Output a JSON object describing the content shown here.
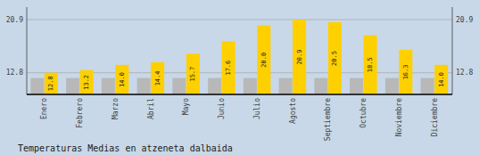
{
  "chart_data": {
    "type": "bar",
    "title": "Temperaturas Medias en atzeneta dalbaida",
    "categories": [
      "Enero",
      "Febrero",
      "Marzo",
      "Abril",
      "Mayo",
      "Junio",
      "Julio",
      "Agosto",
      "Septiembre",
      "Octubre",
      "Noviembre",
      "Diciembre"
    ],
    "series": [
      {
        "color": "#B8B8B8",
        "values": [
          12.0,
          12.0,
          12.0,
          12.0,
          12.0,
          12.0,
          12.0,
          12.0,
          12.0,
          12.0,
          12.0,
          12.0
        ]
      },
      {
        "color": "#FFD000",
        "data_labels": true,
        "values": [
          12.8,
          13.2,
          14.0,
          14.4,
          15.7,
          17.6,
          20.0,
          20.9,
          20.5,
          18.5,
          16.3,
          14.0
        ]
      }
    ],
    "ylim": [
      9.5,
      22.8
    ],
    "yticks": [
      12.8,
      20.9
    ],
    "y2lim": [
      9.5,
      22.8
    ],
    "y2ticks": [
      12.8,
      20.9
    ],
    "grid": true
  }
}
